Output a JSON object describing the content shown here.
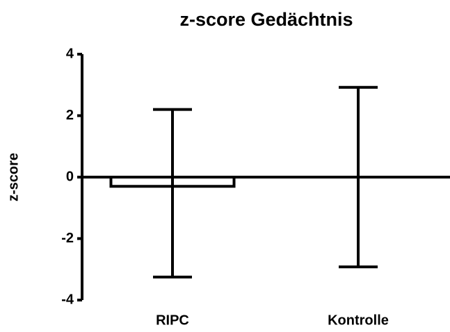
{
  "chart_data": {
    "type": "bar",
    "title": "z-score Gedächtnis",
    "y_label": "z-score",
    "categories": [
      "RIPC",
      "Kontrolle"
    ],
    "values": [
      -0.3,
      0
    ],
    "whisker_low": [
      -3.25,
      -2.92
    ],
    "whisker_high": [
      2.2,
      2.92
    ],
    "color": "#ffffff",
    "ylim": [
      -4,
      4
    ],
    "yticks": [
      -4,
      -2,
      0,
      2,
      4
    ],
    "grid": false
  }
}
